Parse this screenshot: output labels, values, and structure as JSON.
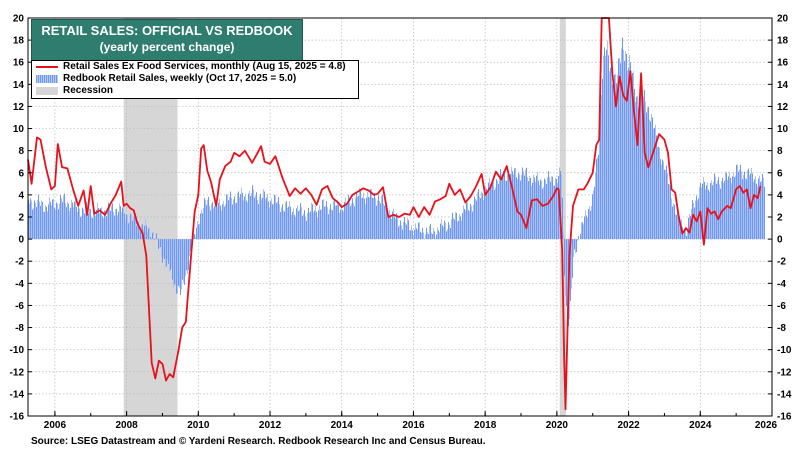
{
  "title": {
    "line1": "RETAIL SALES: OFFICIAL VS REDBOOK",
    "line2": "(yearly percent change)"
  },
  "legend": {
    "official": "Retail Sales Ex Food Services, monthly (Aug 15, 2025 = 4.8)",
    "redbook": "Redbook Retail Sales, weekly (Oct 17, 2025 = 5.0)",
    "recession": "Recession"
  },
  "source": "Source: LSEG Datastream and © Yardeni Research. Redbook Research Inc and Census Bureau.",
  "colors": {
    "official_line": "#e8101b",
    "redbook_bars": "#6f97ee",
    "recession_shade": "#d6d6d6",
    "title_bg": "#2e7d6e",
    "grid": "#b8b8b8"
  },
  "chart_data": {
    "type": "line",
    "xlim": [
      2005.25,
      2026.0
    ],
    "ylim": [
      -16,
      20
    ],
    "grid": true,
    "legend_position": "top-left",
    "x_ticks": [
      "2006",
      "2008",
      "2010",
      "2012",
      "2014",
      "2016",
      "2018",
      "2020",
      "2022",
      "2024",
      "2026"
    ],
    "y_ticks": [
      "20",
      "18",
      "16",
      "14",
      "12",
      "10",
      "8",
      "6",
      "4",
      "2",
      "0",
      "-2",
      "-4",
      "-6",
      "-8",
      "-10",
      "-12",
      "-14",
      "-16"
    ],
    "recessions": [
      [
        2007.92,
        2009.42
      ],
      [
        2020.08,
        2020.25
      ]
    ],
    "series": [
      {
        "name": "Retail Sales Ex Food Services, monthly (Aug 15, 2025 = 4.8)",
        "style": "line",
        "points": [
          [
            2005.25,
            7.2
          ],
          [
            2005.35,
            5.0
          ],
          [
            2005.5,
            9.2
          ],
          [
            2005.6,
            9.0
          ],
          [
            2005.75,
            6.5
          ],
          [
            2005.9,
            4.5
          ],
          [
            2006.0,
            4.8
          ],
          [
            2006.08,
            8.6
          ],
          [
            2006.2,
            6.5
          ],
          [
            2006.35,
            6.4
          ],
          [
            2006.5,
            4.6
          ],
          [
            2006.65,
            3.0
          ],
          [
            2006.8,
            4.4
          ],
          [
            2006.9,
            2.2
          ],
          [
            2007.0,
            4.8
          ],
          [
            2007.1,
            2.3
          ],
          [
            2007.25,
            2.6
          ],
          [
            2007.4,
            2.2
          ],
          [
            2007.55,
            3.2
          ],
          [
            2007.7,
            4.0
          ],
          [
            2007.85,
            5.2
          ],
          [
            2007.92,
            3.0
          ],
          [
            2008.0,
            3.2
          ],
          [
            2008.1,
            2.8
          ],
          [
            2008.2,
            2.6
          ],
          [
            2008.3,
            1.4
          ],
          [
            2008.45,
            0.5
          ],
          [
            2008.55,
            -1.5
          ],
          [
            2008.62,
            -6.0
          ],
          [
            2008.7,
            -11.2
          ],
          [
            2008.8,
            -12.6
          ],
          [
            2008.9,
            -11.0
          ],
          [
            2009.0,
            -11.3
          ],
          [
            2009.1,
            -12.8
          ],
          [
            2009.2,
            -12.2
          ],
          [
            2009.3,
            -12.5
          ],
          [
            2009.45,
            -10.0
          ],
          [
            2009.55,
            -8.0
          ],
          [
            2009.65,
            -7.5
          ],
          [
            2009.8,
            -1.5
          ],
          [
            2009.9,
            2.5
          ],
          [
            2010.0,
            4.0
          ],
          [
            2010.08,
            8.2
          ],
          [
            2010.15,
            8.5
          ],
          [
            2010.25,
            6.2
          ],
          [
            2010.35,
            5.2
          ],
          [
            2010.5,
            3.0
          ],
          [
            2010.6,
            5.4
          ],
          [
            2010.75,
            6.6
          ],
          [
            2010.9,
            7.0
          ],
          [
            2011.0,
            7.8
          ],
          [
            2011.15,
            7.5
          ],
          [
            2011.3,
            8.0
          ],
          [
            2011.5,
            6.9
          ],
          [
            2011.65,
            7.8
          ],
          [
            2011.75,
            8.4
          ],
          [
            2011.85,
            7.0
          ],
          [
            2012.0,
            6.8
          ],
          [
            2012.15,
            7.5
          ],
          [
            2012.35,
            5.5
          ],
          [
            2012.55,
            3.9
          ],
          [
            2012.7,
            4.6
          ],
          [
            2012.85,
            4.1
          ],
          [
            2013.0,
            4.6
          ],
          [
            2013.15,
            4.0
          ],
          [
            2013.3,
            3.1
          ],
          [
            2013.45,
            4.5
          ],
          [
            2013.6,
            4.8
          ],
          [
            2013.75,
            3.7
          ],
          [
            2013.9,
            3.3
          ],
          [
            2014.0,
            2.9
          ],
          [
            2014.15,
            3.2
          ],
          [
            2014.3,
            4.0
          ],
          [
            2014.45,
            4.3
          ],
          [
            2014.6,
            4.6
          ],
          [
            2014.75,
            4.4
          ],
          [
            2014.9,
            4.0
          ],
          [
            2015.0,
            4.1
          ],
          [
            2015.15,
            4.7
          ],
          [
            2015.3,
            2.0
          ],
          [
            2015.45,
            2.2
          ],
          [
            2015.6,
            2.0
          ],
          [
            2015.75,
            2.3
          ],
          [
            2015.9,
            2.2
          ],
          [
            2016.0,
            2.9
          ],
          [
            2016.15,
            2.0
          ],
          [
            2016.3,
            2.9
          ],
          [
            2016.45,
            2.2
          ],
          [
            2016.6,
            3.4
          ],
          [
            2016.75,
            3.6
          ],
          [
            2016.9,
            3.9
          ],
          [
            2017.0,
            5.0
          ],
          [
            2017.15,
            4.0
          ],
          [
            2017.3,
            4.5
          ],
          [
            2017.45,
            3.3
          ],
          [
            2017.6,
            3.9
          ],
          [
            2017.75,
            4.8
          ],
          [
            2017.9,
            5.9
          ],
          [
            2018.0,
            4.0
          ],
          [
            2018.15,
            4.7
          ],
          [
            2018.3,
            6.1
          ],
          [
            2018.45,
            5.4
          ],
          [
            2018.6,
            6.6
          ],
          [
            2018.75,
            4.7
          ],
          [
            2018.9,
            2.5
          ],
          [
            2019.0,
            2.2
          ],
          [
            2019.15,
            1.0
          ],
          [
            2019.3,
            3.5
          ],
          [
            2019.45,
            3.6
          ],
          [
            2019.6,
            3.0
          ],
          [
            2019.75,
            3.2
          ],
          [
            2019.9,
            3.9
          ],
          [
            2020.0,
            4.6
          ],
          [
            2020.05,
            4.5
          ],
          [
            2020.15,
            -1.0
          ],
          [
            2020.2,
            -10.0
          ],
          [
            2020.24,
            -15.4
          ],
          [
            2020.35,
            -1.5
          ],
          [
            2020.45,
            3.0
          ],
          [
            2020.6,
            4.5
          ],
          [
            2020.75,
            4.5
          ],
          [
            2020.85,
            5.0
          ],
          [
            2021.0,
            6.0
          ],
          [
            2021.1,
            8.5
          ],
          [
            2021.18,
            9.0
          ],
          [
            2021.25,
            20.0
          ],
          [
            2021.32,
            20.0
          ],
          [
            2021.45,
            20.0
          ],
          [
            2021.55,
            15.0
          ],
          [
            2021.65,
            12.0
          ],
          [
            2021.75,
            14.7
          ],
          [
            2021.85,
            13.0
          ],
          [
            2021.95,
            12.5
          ],
          [
            2022.05,
            15.2
          ],
          [
            2022.15,
            11.5
          ],
          [
            2022.25,
            8.5
          ],
          [
            2022.35,
            15.0
          ],
          [
            2022.45,
            7.8
          ],
          [
            2022.55,
            6.5
          ],
          [
            2022.7,
            8.0
          ],
          [
            2022.85,
            9.5
          ],
          [
            2023.0,
            9.0
          ],
          [
            2023.1,
            7.8
          ],
          [
            2023.2,
            4.5
          ],
          [
            2023.3,
            4.2
          ],
          [
            2023.4,
            2.0
          ],
          [
            2023.5,
            0.5
          ],
          [
            2023.6,
            1.0
          ],
          [
            2023.7,
            0.6
          ],
          [
            2023.8,
            2.2
          ],
          [
            2023.9,
            1.6
          ],
          [
            2024.0,
            2.5
          ],
          [
            2024.1,
            -0.5
          ],
          [
            2024.2,
            2.8
          ],
          [
            2024.3,
            2.3
          ],
          [
            2024.4,
            2.5
          ],
          [
            2024.5,
            1.8
          ],
          [
            2024.6,
            2.5
          ],
          [
            2024.75,
            3.0
          ],
          [
            2024.85,
            2.8
          ],
          [
            2025.0,
            4.5
          ],
          [
            2025.1,
            4.8
          ],
          [
            2025.2,
            4.2
          ],
          [
            2025.3,
            4.5
          ],
          [
            2025.4,
            2.8
          ],
          [
            2025.5,
            4.0
          ],
          [
            2025.6,
            3.7
          ],
          [
            2025.68,
            4.8
          ]
        ]
      },
      {
        "name": "Redbook Retail Sales, weekly (Oct 17, 2025 = 5.0)",
        "style": "bars",
        "points": [
          [
            2005.25,
            3.5
          ],
          [
            2005.75,
            3.0
          ],
          [
            2006.25,
            3.5
          ],
          [
            2006.75,
            2.6
          ],
          [
            2007.25,
            2.5
          ],
          [
            2007.75,
            2.8
          ],
          [
            2008.0,
            2.2
          ],
          [
            2008.25,
            1.6
          ],
          [
            2008.5,
            1.0
          ],
          [
            2008.75,
            0.5
          ],
          [
            2008.9,
            -1.0
          ],
          [
            2009.0,
            -1.5
          ],
          [
            2009.2,
            -3.0
          ],
          [
            2009.35,
            -4.2
          ],
          [
            2009.5,
            -5.0
          ],
          [
            2009.65,
            -3.0
          ],
          [
            2009.85,
            -0.3
          ],
          [
            2010.0,
            2.0
          ],
          [
            2010.25,
            3.5
          ],
          [
            2010.5,
            3.0
          ],
          [
            2010.75,
            3.5
          ],
          [
            2011.0,
            3.8
          ],
          [
            2011.5,
            4.1
          ],
          [
            2012.0,
            3.6
          ],
          [
            2012.5,
            2.8
          ],
          [
            2013.0,
            2.4
          ],
          [
            2013.5,
            3.0
          ],
          [
            2014.0,
            3.0
          ],
          [
            2014.5,
            4.0
          ],
          [
            2015.0,
            3.8
          ],
          [
            2015.5,
            1.8
          ],
          [
            2016.0,
            1.0
          ],
          [
            2016.5,
            0.6
          ],
          [
            2017.0,
            1.5
          ],
          [
            2017.5,
            2.8
          ],
          [
            2018.0,
            4.5
          ],
          [
            2018.5,
            5.8
          ],
          [
            2019.0,
            6.0
          ],
          [
            2019.5,
            5.2
          ],
          [
            2020.0,
            5.5
          ],
          [
            2020.12,
            6.0
          ],
          [
            2020.2,
            -3.0
          ],
          [
            2020.28,
            -7.5
          ],
          [
            2020.35,
            -7.0
          ],
          [
            2020.45,
            -2.0
          ],
          [
            2020.6,
            0.5
          ],
          [
            2020.8,
            2.0
          ],
          [
            2021.0,
            4.0
          ],
          [
            2021.15,
            8.0
          ],
          [
            2021.25,
            15.5
          ],
          [
            2021.33,
            17.5
          ],
          [
            2021.5,
            14.8
          ],
          [
            2021.7,
            15.0
          ],
          [
            2021.85,
            17.8
          ],
          [
            2022.0,
            15.8
          ],
          [
            2022.2,
            13.0
          ],
          [
            2022.4,
            12.5
          ],
          [
            2022.6,
            11.5
          ],
          [
            2022.8,
            8.5
          ],
          [
            2023.0,
            6.5
          ],
          [
            2023.2,
            3.8
          ],
          [
            2023.4,
            1.5
          ],
          [
            2023.6,
            0.8
          ],
          [
            2023.8,
            3.2
          ],
          [
            2024.0,
            4.8
          ],
          [
            2024.25,
            5.0
          ],
          [
            2024.5,
            5.3
          ],
          [
            2024.75,
            5.5
          ],
          [
            2025.0,
            6.2
          ],
          [
            2025.25,
            6.0
          ],
          [
            2025.5,
            5.6
          ],
          [
            2025.8,
            5.0
          ]
        ]
      }
    ]
  }
}
